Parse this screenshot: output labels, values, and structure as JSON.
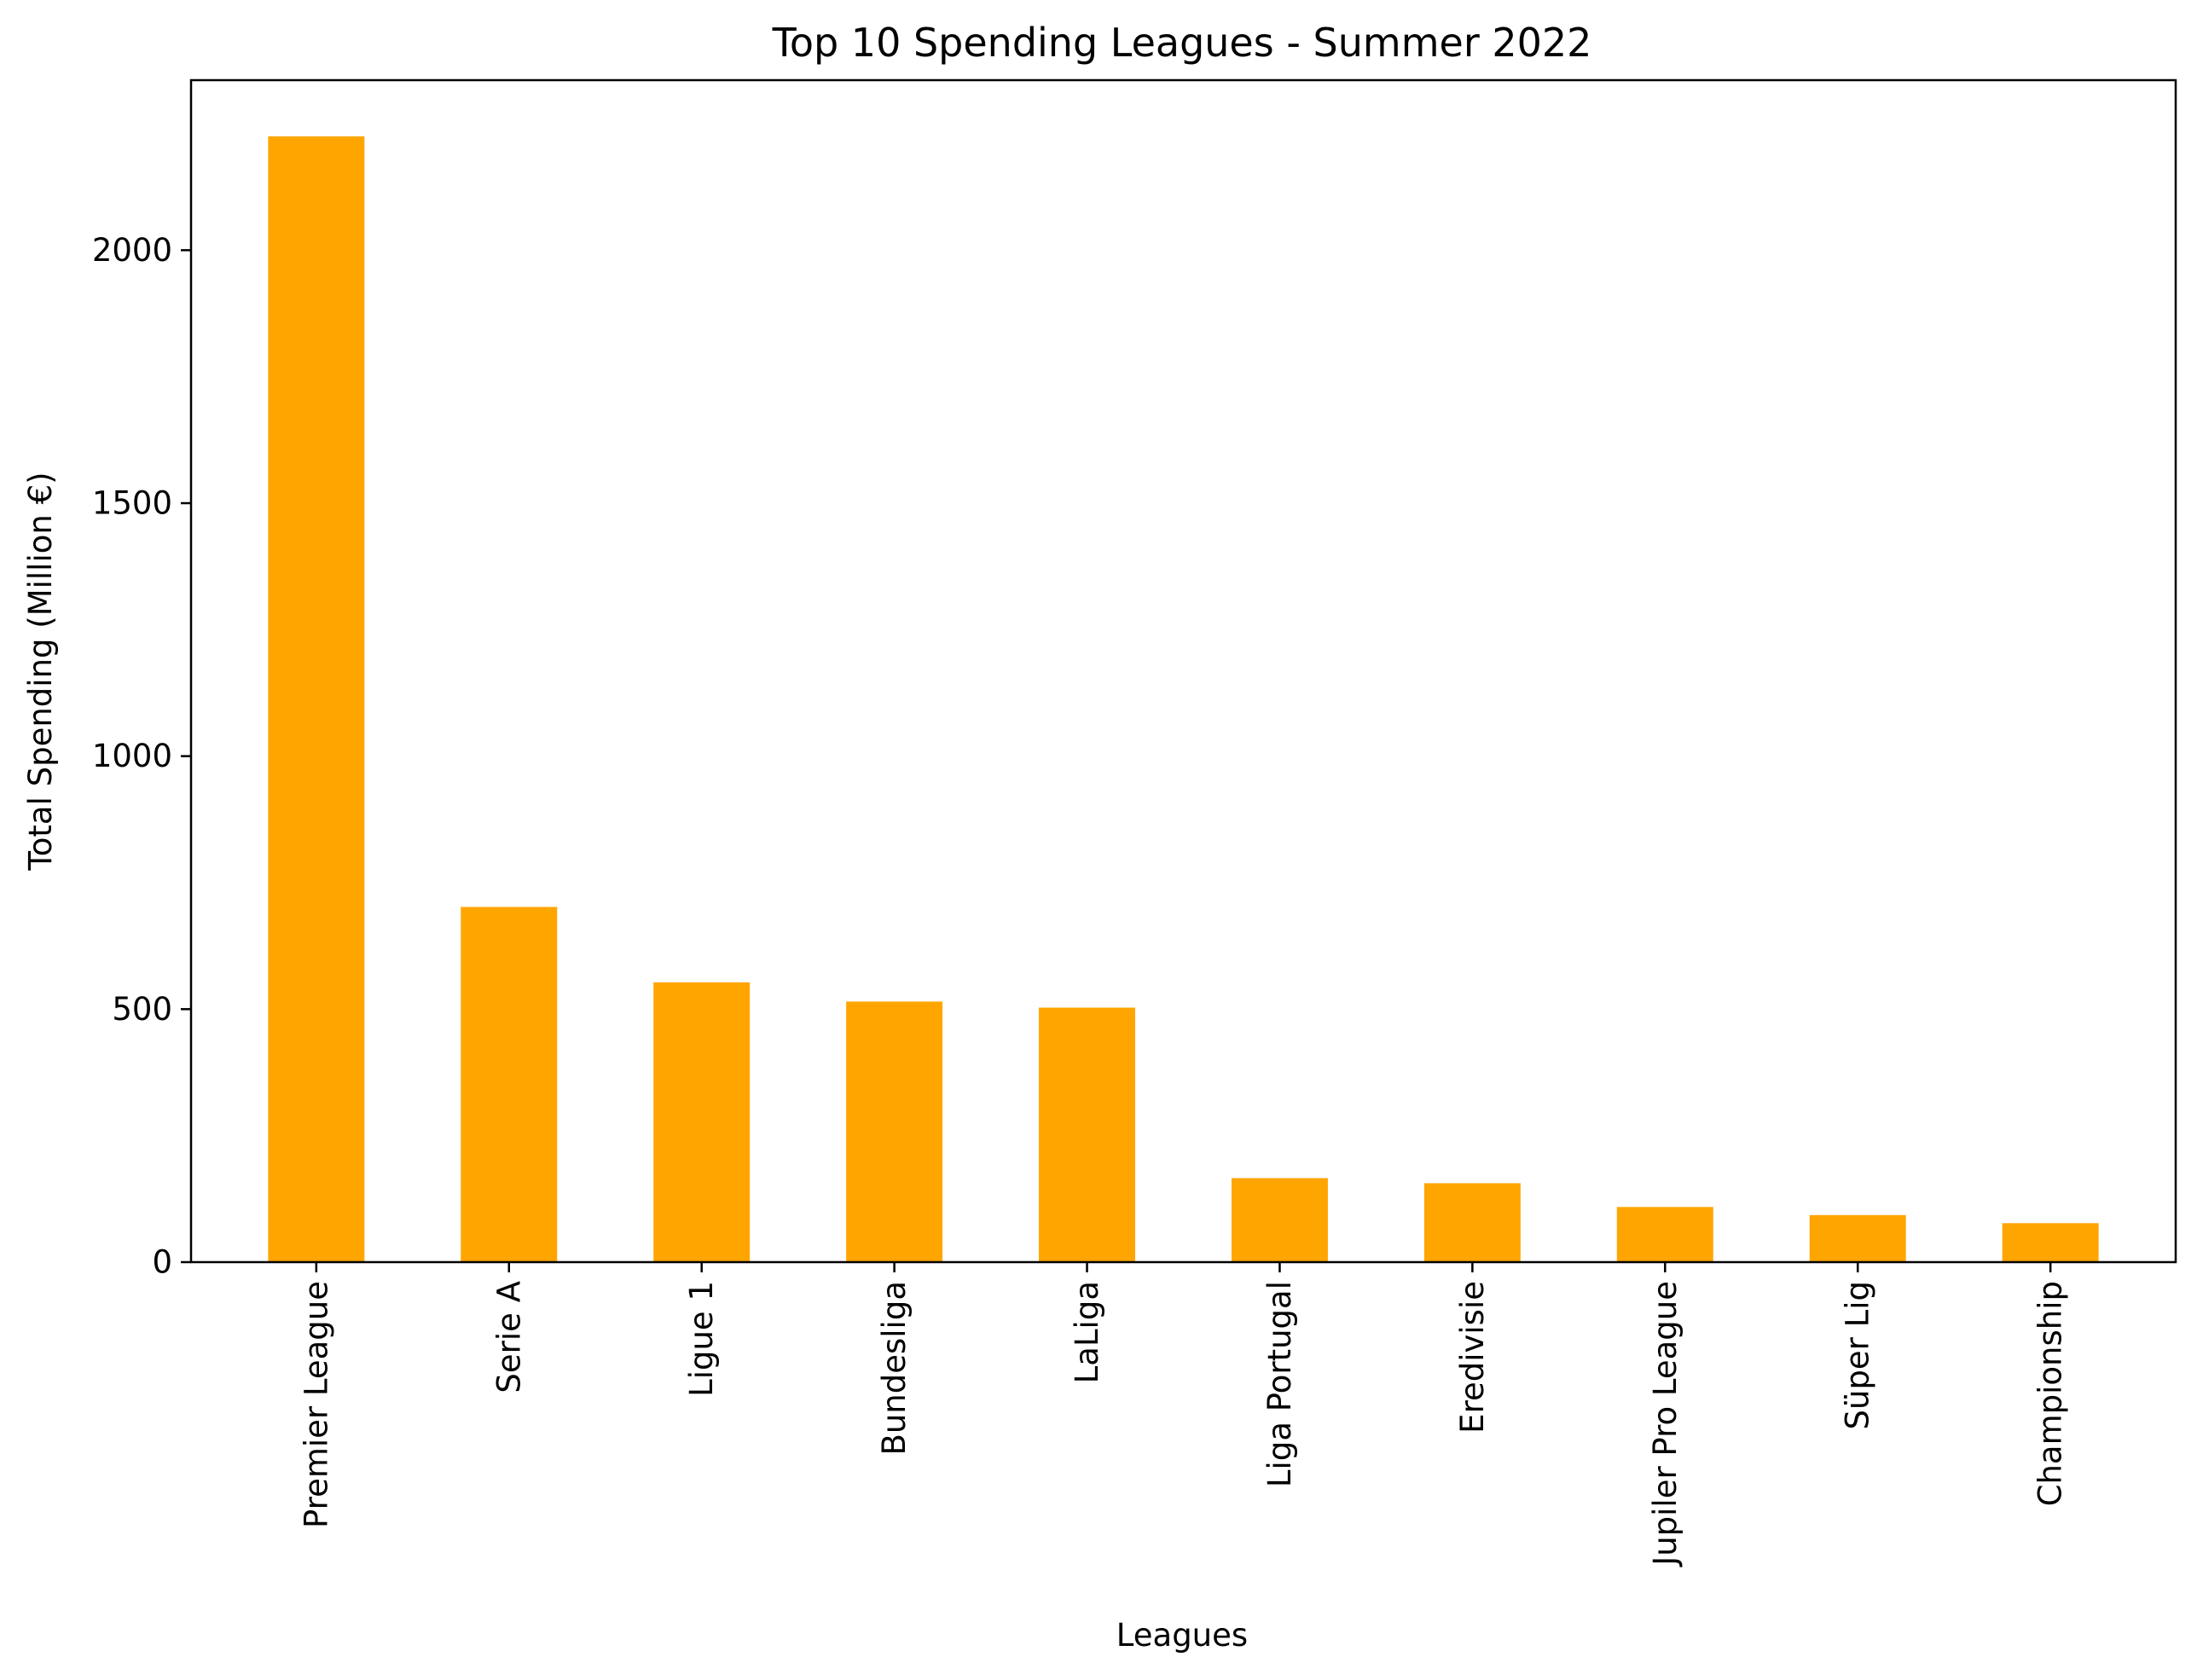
{
  "chart_data": {
    "type": "bar",
    "title": "Top 10 Spending Leagues - Summer 2022",
    "xlabel": "Leagues",
    "ylabel": "Total Spending (Million €)",
    "categories": [
      "Premier League",
      "Serie A",
      "Ligue 1",
      "Bundesliga",
      "LaLiga",
      "Liga Portugal",
      "Eredivisie",
      "Jupiler Pro League",
      "Süper Lig",
      "Championship"
    ],
    "values": [
      2225,
      702,
      553,
      515,
      503,
      166,
      156,
      109,
      93,
      77
    ],
    "ylim": [
      0,
      2336
    ],
    "yticks": [
      0,
      500,
      1000,
      1500,
      2000
    ],
    "ytick_labels": [
      "0",
      "500",
      "1000",
      "1500",
      "2000"
    ],
    "bar_color": "#ffa500",
    "grid": false,
    "legend": "none"
  }
}
